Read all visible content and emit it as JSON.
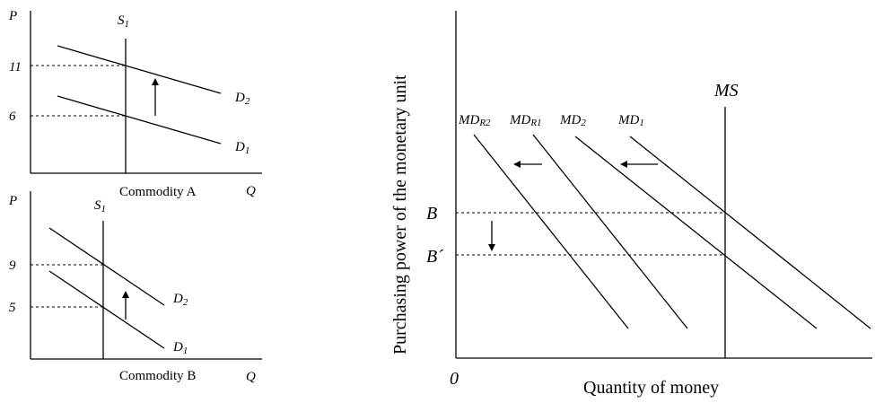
{
  "panel_a": {
    "p_label": "P",
    "q_label": "Q",
    "caption": "Commodity A",
    "s1": "S",
    "s1_sub": "1",
    "d2": "D",
    "d2_sub": "2",
    "d1": "D",
    "d1_sub": "1",
    "price_high": "11",
    "price_low": "6"
  },
  "panel_b": {
    "p_label": "P",
    "q_label": "Q",
    "caption": "Commodity B",
    "s1": "S",
    "s1_sub": "1",
    "d2": "D",
    "d2_sub": "2",
    "d1": "D",
    "d1_sub": "1",
    "price_high": "9",
    "price_low": "5"
  },
  "panel_c": {
    "y_axis_label": "Purchasing power of the monetary unit",
    "x_axis_label": "Quantity of money",
    "origin": "0",
    "ms": "MS",
    "mdr2": "MD",
    "mdr2_sub": "R2",
    "mdr1": "MD",
    "mdr1_sub": "R1",
    "md2": "MD",
    "md2_sub": "2",
    "md1": "MD",
    "md1_sub": "1",
    "b": "B",
    "b_prime": "B´"
  }
}
